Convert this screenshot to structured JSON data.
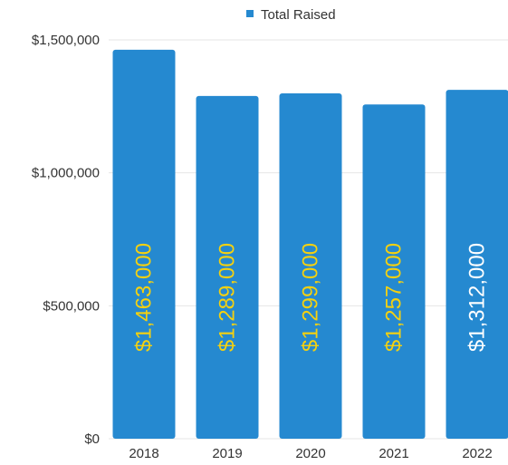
{
  "chart_data": {
    "type": "bar",
    "title": "",
    "xlabel": "",
    "ylabel": "",
    "categories": [
      "2018",
      "2019",
      "2020",
      "2021",
      "2022"
    ],
    "series": [
      {
        "name": "Total Raised",
        "values": [
          1463000,
          1289000,
          1299000,
          1257000,
          1312000
        ],
        "color": "#2589d0"
      }
    ],
    "data_labels": [
      "$1,463,000",
      "$1,289,000",
      "$1,299,000",
      "$1,257,000",
      "$1,312,000"
    ],
    "data_label_colors": [
      "#f5d10f",
      "#f5d10f",
      "#f5d10f",
      "#f5d10f",
      "#ffffff"
    ],
    "ylim": [
      0,
      1500000
    ],
    "yticks": [
      {
        "value": 0,
        "label": "$0"
      },
      {
        "value": 500000,
        "label": "$500,000"
      },
      {
        "value": 1000000,
        "label": "$1,000,000"
      },
      {
        "value": 1500000,
        "label": "$1,500,000"
      }
    ],
    "grid": true,
    "legend_position": "top"
  }
}
